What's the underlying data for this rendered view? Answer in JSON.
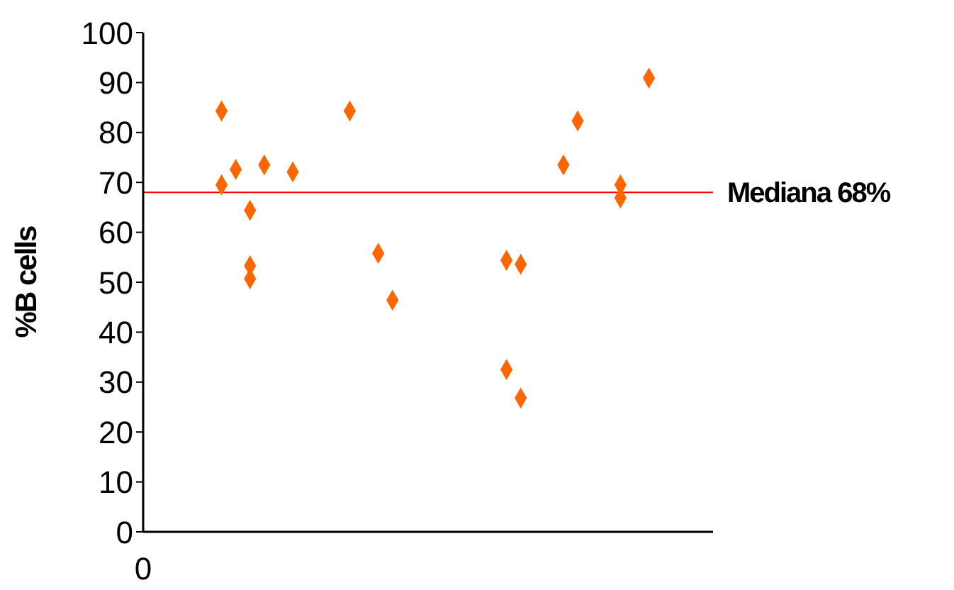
{
  "chart_data": {
    "type": "scatter",
    "ylabel": "%B cells",
    "categories": [
      null,
      null,
      null,
      null,
      null,
      null,
      null,
      null,
      null,
      null,
      null,
      null,
      null,
      null,
      null,
      null,
      null,
      null,
      null,
      null,
      null,
      null,
      null,
      null,
      null,
      null,
      null,
      null,
      null,
      null,
      null,
      null,
      null,
      null,
      null,
      null,
      null,
      null,
      null,
      null
    ],
    "series": [
      {
        "color": "#ff6600",
        "values": [
          null,
          null,
          null,
          null,
          null,
          84.3,
          72.6,
          64.4,
          73.5,
          null,
          72.1,
          null,
          null,
          null,
          84.3,
          null,
          55.8,
          46.4,
          null,
          null,
          null,
          null,
          null,
          null,
          null,
          54.4,
          53.6,
          null,
          null,
          73.5,
          82.3,
          null,
          null,
          69.5,
          null,
          90.9,
          null,
          null,
          null,
          null
        ]
      },
      {
        "color": "#ff6600",
        "values": [
          null,
          null,
          null,
          null,
          null,
          69.5,
          null,
          53.3,
          null,
          null,
          null,
          null,
          null,
          null,
          null,
          null,
          null,
          null,
          null,
          null,
          null,
          null,
          null,
          null,
          null,
          32.5,
          26.8,
          null,
          null,
          null,
          null,
          null,
          null,
          66.9,
          null,
          null,
          null,
          null,
          null,
          null
        ]
      },
      {
        "color": "#ff6600",
        "values": [
          null,
          null,
          null,
          null,
          null,
          null,
          null,
          50.7,
          null,
          null,
          null,
          null,
          null,
          null,
          null,
          null,
          null,
          null,
          null,
          null,
          null,
          null,
          null,
          null,
          null,
          null,
          null,
          null,
          null,
          null,
          null,
          null,
          null,
          null,
          null,
          null,
          null,
          null,
          null,
          null
        ]
      }
    ],
    "marker": "diamond",
    "ylim": [
      0,
      100
    ],
    "yticks": [
      0,
      10,
      20,
      30,
      40,
      50,
      60,
      70,
      80,
      90,
      100
    ],
    "annotations": [
      "0"
    ],
    "ref_lines": [
      {
        "axis": "y",
        "value": 68,
        "label": "Mediana 68%",
        "color": "#ff0000"
      }
    ],
    "grid": false,
    "legend": false
  }
}
